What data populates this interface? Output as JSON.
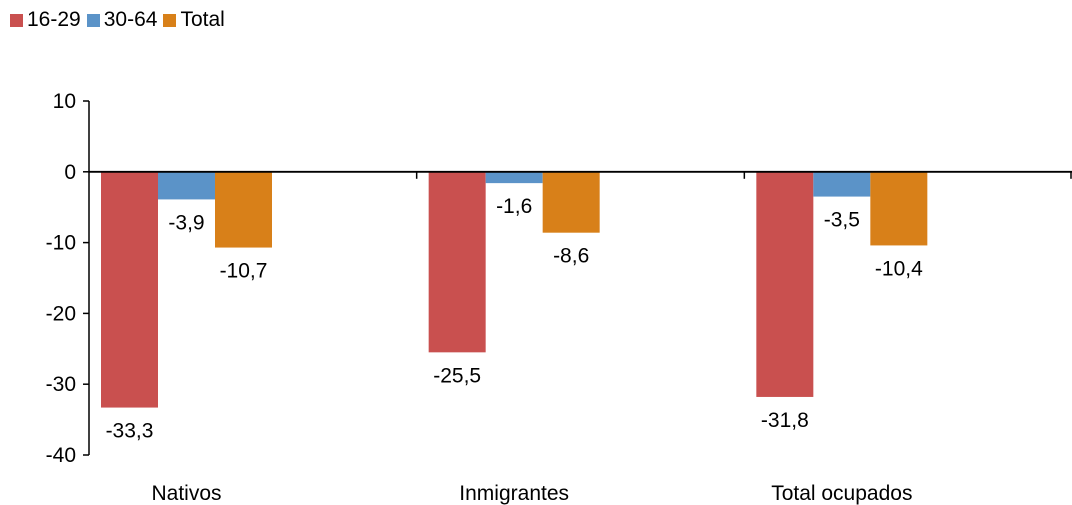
{
  "chart_data": {
    "type": "bar",
    "categories": [
      "Nativos",
      "Inmigrantes",
      "Total ocupados"
    ],
    "series": [
      {
        "name": "16-29",
        "color": "#c9504f",
        "values": [
          -33.3,
          -25.5,
          -31.8
        ],
        "labels": [
          "-33,3",
          "-25,5",
          "-31,8"
        ]
      },
      {
        "name": "30-64",
        "color": "#5b93c8",
        "values": [
          -3.9,
          -1.6,
          -3.5
        ],
        "labels": [
          "-3,9",
          "-1,6",
          "-3,5"
        ]
      },
      {
        "name": "Total",
        "color": "#d88019",
        "values": [
          -10.7,
          -8.6,
          -10.4
        ],
        "labels": [
          "-10,7",
          "-8,6",
          "-10,4"
        ]
      }
    ],
    "ylim": [
      -40,
      10
    ],
    "yticks": [
      10,
      0,
      -10,
      -20,
      -30,
      -40
    ],
    "ytick_labels": [
      "10",
      "0",
      "-10",
      "-20",
      "-30",
      "-40"
    ],
    "legend_position": "top-left",
    "grid": false
  }
}
